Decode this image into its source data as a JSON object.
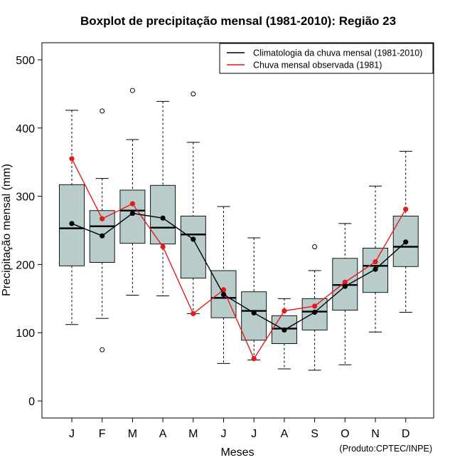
{
  "chart_data": {
    "type": "boxplot",
    "title": "Boxplot de precipitação mensal (1981-2010): Região 23",
    "xlabel": "Meses",
    "ylabel": "Precipitação mensal (mm)",
    "ylim": [
      -25,
      525
    ],
    "yticks": [
      0,
      100,
      200,
      300,
      400,
      500
    ],
    "yticks_labels": [
      "0",
      "100",
      "200",
      "300",
      "400",
      "500"
    ],
    "categories": [
      "J",
      "F",
      "M",
      "A",
      "M",
      "J",
      "J",
      "A",
      "S",
      "O",
      "N",
      "D"
    ],
    "boxes": [
      {
        "whisker_low": 112,
        "q1": 198,
        "median": 253,
        "q3": 317,
        "whisker_high": 426,
        "outliers": []
      },
      {
        "whisker_low": 121,
        "q1": 203,
        "median": 256,
        "q3": 279,
        "whisker_high": 326,
        "outliers": [
          75,
          425
        ]
      },
      {
        "whisker_low": 155,
        "q1": 231,
        "median": 279,
        "q3": 309,
        "whisker_high": 383,
        "outliers": [
          455
        ]
      },
      {
        "whisker_low": 154,
        "q1": 230,
        "median": 254,
        "q3": 316,
        "whisker_high": 439,
        "outliers": []
      },
      {
        "whisker_low": 128,
        "q1": 180,
        "median": 244,
        "q3": 271,
        "whisker_high": 379,
        "outliers": [
          450
        ]
      },
      {
        "whisker_low": 55,
        "q1": 122,
        "median": 151,
        "q3": 191,
        "whisker_high": 285,
        "outliers": []
      },
      {
        "whisker_low": 60,
        "q1": 89,
        "median": 132,
        "q3": 160,
        "whisker_high": 239,
        "outliers": []
      },
      {
        "whisker_low": 47,
        "q1": 84,
        "median": 106,
        "q3": 125,
        "whisker_high": 150,
        "outliers": []
      },
      {
        "whisker_low": 45,
        "q1": 104,
        "median": 131,
        "q3": 150,
        "whisker_high": 191,
        "outliers": [
          226
        ]
      },
      {
        "whisker_low": 53,
        "q1": 133,
        "median": 170,
        "q3": 209,
        "whisker_high": 260,
        "outliers": []
      },
      {
        "whisker_low": 101,
        "q1": 159,
        "median": 198,
        "q3": 224,
        "whisker_high": 315,
        "outliers": []
      },
      {
        "whisker_low": 130,
        "q1": 197,
        "median": 226,
        "q3": 271,
        "whisker_high": 366,
        "outliers": []
      }
    ],
    "series": [
      {
        "name": "Climatologia da chuva mensal (1981-2010)",
        "color": "#000000",
        "values": [
          260,
          242,
          275,
          268,
          237,
          156,
          129,
          104,
          130,
          168,
          193,
          233
        ]
      },
      {
        "name": "Chuva mensal observada (1981)",
        "color": "#e41a1c",
        "values": [
          355,
          267,
          289,
          226,
          128,
          163,
          62,
          132,
          139,
          174,
          204,
          281
        ]
      }
    ],
    "box_fill": "#b7cccb",
    "legend_position": "top-right",
    "credit": "(Produto:CPTEC/INPE)"
  }
}
